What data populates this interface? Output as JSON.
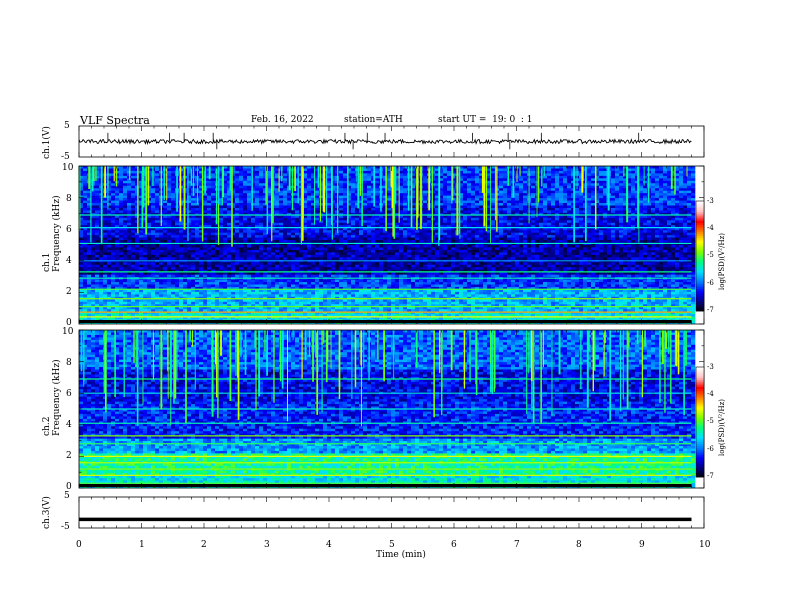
{
  "header": {
    "title": "VLF Spectra",
    "date": "Feb. 16, 2022",
    "station": "station=ATH",
    "start": "start UT =  19: 0  : 1"
  },
  "colors": {
    "colormap": [
      "#000000",
      "#00007f",
      "#0000ff",
      "#007fff",
      "#00e0ff",
      "#00ff7f",
      "#7fff00",
      "#ffff00",
      "#ff7f00",
      "#ff0000",
      "#ffc0c0",
      "#ffffff"
    ]
  },
  "chart_data": [
    {
      "type": "line",
      "title": "",
      "ylabel": "ch.1(V)",
      "xlabel": "",
      "xlim": [
        0,
        10
      ],
      "ylim": [
        -5,
        5
      ],
      "yticks": [
        "5",
        "-5"
      ],
      "series": [
        {
          "name": "ch.1",
          "x_range": [
            0,
            9.8
          ],
          "baseline": 0,
          "amplitude": 0.8
        }
      ]
    },
    {
      "type": "heatmap",
      "ylabel_channel": "ch.1",
      "ylabel": "Frequency (kHz)",
      "xlim": [
        0,
        10
      ],
      "ylim": [
        0,
        10
      ],
      "yticks": [
        "0",
        "2",
        "4",
        "6",
        "8",
        "10"
      ],
      "colorbar": {
        "label": "log(PSD)(V²/Hz)",
        "ticks": [
          "-3",
          "-4",
          "-5",
          "-6",
          "-7"
        ],
        "range": [
          -7,
          -3
        ]
      }
    },
    {
      "type": "heatmap",
      "ylabel_channel": "ch.2",
      "ylabel": "Frequency (kHz)",
      "xlim": [
        0,
        10
      ],
      "ylim": [
        0,
        10
      ],
      "yticks": [
        "0",
        "2",
        "4",
        "6",
        "8",
        "10"
      ],
      "colorbar": {
        "label": "log(PSD)(V²/Hz)",
        "ticks": [
          "-3",
          "-4",
          "-5",
          "-6",
          "-7"
        ],
        "range": [
          -7,
          -3
        ]
      }
    },
    {
      "type": "line",
      "title": "",
      "ylabel": "ch.3(V)",
      "xlabel": "Time (min)",
      "xlim": [
        0,
        10
      ],
      "ylim": [
        -5,
        5
      ],
      "yticks": [
        "5",
        "-5"
      ],
      "xticks": [
        "0",
        "1",
        "2",
        "3",
        "4",
        "5",
        "6",
        "7",
        "8",
        "9",
        "10"
      ],
      "series": [
        {
          "name": "ch.3",
          "x_range": [
            0,
            9.8
          ],
          "value": -2.2
        }
      ]
    }
  ]
}
